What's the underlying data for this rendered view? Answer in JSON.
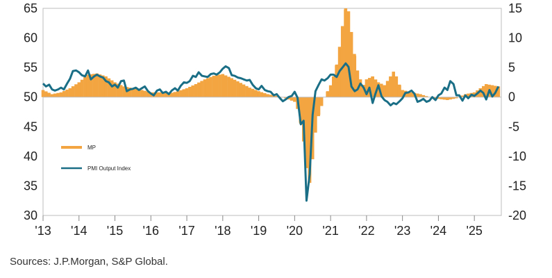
{
  "chart_data": {
    "type": "bar+line",
    "source": "Sources: J.P.Morgan, S&P Global.",
    "x_ticks": [
      "'13",
      "'14",
      "'15",
      "'16",
      "'17",
      "'18",
      "'19",
      "'20",
      "'21",
      "'22",
      "'23",
      "'24",
      "'25"
    ],
    "left_axis": {
      "ylim": [
        30,
        65
      ],
      "ticks": [
        "30",
        "35",
        "40",
        "45",
        "50",
        "55",
        "60",
        "65"
      ]
    },
    "right_axis": {
      "ylim": [
        -20,
        15
      ],
      "ticks": [
        "-20",
        "-15",
        "-10",
        "-5",
        "0",
        "5",
        "10",
        "15"
      ]
    },
    "x_range": [
      2013.0,
      2025.75
    ],
    "series": [
      {
        "name": "MP",
        "axis": "right",
        "type": "bar",
        "color": "#f2a541",
        "points": [
          [
            2013.0,
            1.2
          ],
          [
            2013.25,
            0.5
          ],
          [
            2013.5,
            0.8
          ],
          [
            2013.75,
            1.5
          ],
          [
            2014.0,
            2.5
          ],
          [
            2014.25,
            3.8
          ],
          [
            2014.5,
            4.0
          ],
          [
            2014.75,
            3.5
          ],
          [
            2015.0,
            2.5
          ],
          [
            2015.25,
            1.8
          ],
          [
            2015.5,
            1.5
          ],
          [
            2015.75,
            1.2
          ],
          [
            2016.0,
            0.8
          ],
          [
            2016.25,
            0.8
          ],
          [
            2016.5,
            0.6
          ],
          [
            2016.75,
            1.0
          ],
          [
            2017.0,
            1.5
          ],
          [
            2017.25,
            2.2
          ],
          [
            2017.5,
            3.0
          ],
          [
            2017.75,
            3.6
          ],
          [
            2018.0,
            3.9
          ],
          [
            2018.25,
            3.2
          ],
          [
            2018.5,
            2.4
          ],
          [
            2018.75,
            1.6
          ],
          [
            2019.0,
            1.0
          ],
          [
            2019.25,
            0.5
          ],
          [
            2019.5,
            0.2
          ],
          [
            2019.75,
            -0.2
          ],
          [
            2020.0,
            -0.8
          ],
          [
            2020.08,
            -2.0
          ],
          [
            2020.17,
            -4.5
          ],
          [
            2020.25,
            -7.5
          ],
          [
            2020.33,
            -12.0
          ],
          [
            2020.42,
            -14.5
          ],
          [
            2020.5,
            -10.5
          ],
          [
            2020.58,
            -6.0
          ],
          [
            2020.67,
            -3.0
          ],
          [
            2020.75,
            -1.5
          ],
          [
            2020.83,
            0.0
          ],
          [
            2020.92,
            1.0
          ],
          [
            2021.0,
            2.0
          ],
          [
            2021.08,
            3.5
          ],
          [
            2021.17,
            5.5
          ],
          [
            2021.25,
            8.5
          ],
          [
            2021.33,
            12.0
          ],
          [
            2021.42,
            15.0
          ],
          [
            2021.5,
            14.5
          ],
          [
            2021.58,
            11.0
          ],
          [
            2021.67,
            7.0
          ],
          [
            2021.75,
            4.5
          ],
          [
            2021.83,
            3.0
          ],
          [
            2021.92,
            2.0
          ],
          [
            2022.0,
            3.0
          ],
          [
            2022.17,
            3.5
          ],
          [
            2022.33,
            2.5
          ],
          [
            2022.5,
            2.0
          ],
          [
            2022.67,
            3.5
          ],
          [
            2022.75,
            4.3
          ],
          [
            2022.83,
            3.5
          ],
          [
            2022.92,
            2.0
          ],
          [
            2023.0,
            1.2
          ],
          [
            2023.25,
            0.8
          ],
          [
            2023.5,
            0.5
          ],
          [
            2023.75,
            0.0
          ],
          [
            2024.0,
            -0.3
          ],
          [
            2024.25,
            -0.5
          ],
          [
            2024.5,
            -0.2
          ],
          [
            2024.75,
            0.5
          ],
          [
            2025.0,
            0.8
          ],
          [
            2025.17,
            1.5
          ],
          [
            2025.33,
            2.2
          ],
          [
            2025.5,
            2.0
          ],
          [
            2025.67,
            1.8
          ]
        ]
      },
      {
        "name": "PMI Output Index",
        "axis": "left",
        "type": "line",
        "color": "#1a6f86",
        "points": [
          [
            2013.0,
            52.3
          ],
          [
            2013.08,
            51.8
          ],
          [
            2013.17,
            52.1
          ],
          [
            2013.25,
            51.3
          ],
          [
            2013.33,
            51.1
          ],
          [
            2013.42,
            51.3
          ],
          [
            2013.5,
            51.6
          ],
          [
            2013.58,
            51.3
          ],
          [
            2013.67,
            52.3
          ],
          [
            2013.75,
            53.1
          ],
          [
            2013.83,
            54.4
          ],
          [
            2013.92,
            54.5
          ],
          [
            2014.0,
            54.2
          ],
          [
            2014.08,
            53.7
          ],
          [
            2014.17,
            53.5
          ],
          [
            2014.25,
            54.5
          ],
          [
            2014.33,
            53.0
          ],
          [
            2014.42,
            53.5
          ],
          [
            2014.5,
            53.8
          ],
          [
            2014.58,
            53.5
          ],
          [
            2014.67,
            53.3
          ],
          [
            2014.75,
            52.7
          ],
          [
            2014.83,
            52.5
          ],
          [
            2014.92,
            51.8
          ],
          [
            2015.0,
            52.1
          ],
          [
            2015.08,
            51.6
          ],
          [
            2015.17,
            52.7
          ],
          [
            2015.25,
            52.8
          ],
          [
            2015.33,
            51.0
          ],
          [
            2015.42,
            51.3
          ],
          [
            2015.5,
            51.4
          ],
          [
            2015.58,
            51.6
          ],
          [
            2015.67,
            51.2
          ],
          [
            2015.75,
            51.5
          ],
          [
            2015.83,
            51.8
          ],
          [
            2015.92,
            51.0
          ],
          [
            2016.0,
            50.6
          ],
          [
            2016.08,
            50.3
          ],
          [
            2016.17,
            51.1
          ],
          [
            2016.25,
            51.3
          ],
          [
            2016.33,
            50.7
          ],
          [
            2016.42,
            50.9
          ],
          [
            2016.5,
            50.5
          ],
          [
            2016.58,
            51.1
          ],
          [
            2016.67,
            51.5
          ],
          [
            2016.75,
            51.1
          ],
          [
            2016.83,
            51.9
          ],
          [
            2016.92,
            52.5
          ],
          [
            2017.0,
            52.4
          ],
          [
            2017.08,
            52.7
          ],
          [
            2017.17,
            53.6
          ],
          [
            2017.25,
            53.4
          ],
          [
            2017.33,
            54.2
          ],
          [
            2017.42,
            53.6
          ],
          [
            2017.5,
            53.5
          ],
          [
            2017.58,
            53.4
          ],
          [
            2017.67,
            53.9
          ],
          [
            2017.75,
            54.0
          ],
          [
            2017.83,
            53.8
          ],
          [
            2017.92,
            54.2
          ],
          [
            2018.0,
            54.8
          ],
          [
            2018.08,
            55.2
          ],
          [
            2018.17,
            54.9
          ],
          [
            2018.25,
            53.7
          ],
          [
            2018.33,
            53.6
          ],
          [
            2018.42,
            53.3
          ],
          [
            2018.5,
            53.2
          ],
          [
            2018.58,
            53.0
          ],
          [
            2018.67,
            52.8
          ],
          [
            2018.75,
            52.9
          ],
          [
            2018.83,
            52.1
          ],
          [
            2018.92,
            51.5
          ],
          [
            2019.0,
            51.3
          ],
          [
            2019.08,
            51.9
          ],
          [
            2019.17,
            51.2
          ],
          [
            2019.25,
            51.0
          ],
          [
            2019.33,
            50.9
          ],
          [
            2019.42,
            50.3
          ],
          [
            2019.5,
            50.5
          ],
          [
            2019.58,
            49.9
          ],
          [
            2019.67,
            49.3
          ],
          [
            2019.75,
            49.6
          ],
          [
            2019.83,
            50.0
          ],
          [
            2019.92,
            50.2
          ],
          [
            2020.0,
            50.9
          ],
          [
            2020.08,
            49.9
          ],
          [
            2020.17,
            45.4
          ],
          [
            2020.25,
            46.0
          ],
          [
            2020.33,
            32.5
          ],
          [
            2020.42,
            37.0
          ],
          [
            2020.5,
            47.0
          ],
          [
            2020.58,
            51.0
          ],
          [
            2020.67,
            52.1
          ],
          [
            2020.75,
            53.0
          ],
          [
            2020.83,
            52.8
          ],
          [
            2020.92,
            53.2
          ],
          [
            2021.0,
            53.8
          ],
          [
            2021.08,
            53.8
          ],
          [
            2021.17,
            53.4
          ],
          [
            2021.25,
            54.4
          ],
          [
            2021.33,
            55.0
          ],
          [
            2021.42,
            55.7
          ],
          [
            2021.5,
            55.1
          ],
          [
            2021.58,
            51.8
          ],
          [
            2021.67,
            51.0
          ],
          [
            2021.75,
            51.3
          ],
          [
            2021.83,
            52.3
          ],
          [
            2021.92,
            51.6
          ],
          [
            2022.0,
            50.5
          ],
          [
            2022.08,
            51.6
          ],
          [
            2022.17,
            49.0
          ],
          [
            2022.25,
            50.6
          ],
          [
            2022.33,
            52.0
          ],
          [
            2022.42,
            50.1
          ],
          [
            2022.5,
            49.5
          ],
          [
            2022.58,
            49.2
          ],
          [
            2022.67,
            48.6
          ],
          [
            2022.75,
            49.0
          ],
          [
            2022.83,
            48.8
          ],
          [
            2022.92,
            49.3
          ],
          [
            2023.0,
            49.8
          ],
          [
            2023.08,
            50.7
          ],
          [
            2023.17,
            50.8
          ],
          [
            2023.25,
            51.1
          ],
          [
            2023.33,
            50.6
          ],
          [
            2023.42,
            49.2
          ],
          [
            2023.5,
            49.4
          ],
          [
            2023.58,
            49.7
          ],
          [
            2023.67,
            49.2
          ],
          [
            2023.75,
            49.4
          ],
          [
            2023.83,
            50.0
          ],
          [
            2023.92,
            49.5
          ],
          [
            2024.0,
            50.3
          ],
          [
            2024.08,
            50.6
          ],
          [
            2024.17,
            51.6
          ],
          [
            2024.25,
            51.2
          ],
          [
            2024.33,
            52.7
          ],
          [
            2024.42,
            52.2
          ],
          [
            2024.5,
            50.3
          ],
          [
            2024.58,
            50.3
          ],
          [
            2024.67,
            49.4
          ],
          [
            2024.75,
            50.3
          ],
          [
            2024.83,
            49.8
          ],
          [
            2024.92,
            50.4
          ],
          [
            2025.0,
            50.2
          ],
          [
            2025.08,
            50.6
          ],
          [
            2025.17,
            51.1
          ],
          [
            2025.25,
            50.7
          ],
          [
            2025.33,
            49.6
          ],
          [
            2025.42,
            51.2
          ],
          [
            2025.5,
            50.1
          ],
          [
            2025.58,
            50.7
          ],
          [
            2025.67,
            51.8
          ]
        ]
      }
    ],
    "legend": {
      "placement": "left-middle",
      "entries": [
        "MP",
        "PMI Output Index"
      ]
    },
    "grid": false
  }
}
